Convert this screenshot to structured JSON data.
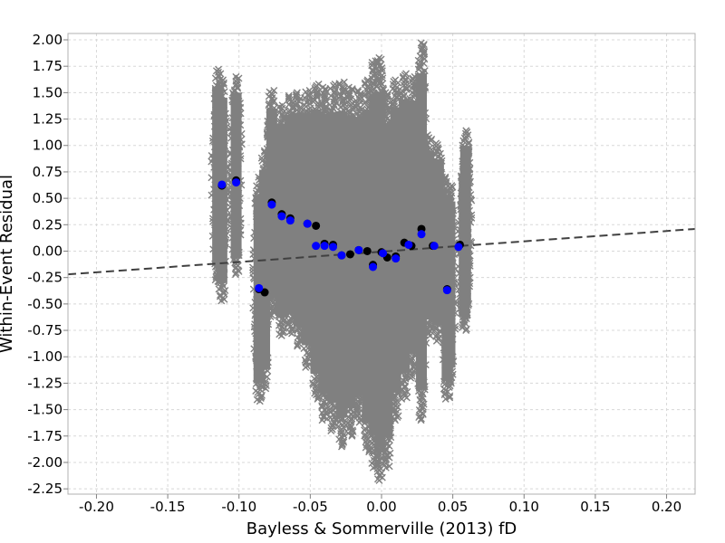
{
  "chart_data": {
    "type": "scatter",
    "xlabel": "Bayless & Sommerville (2013) fD",
    "ylabel": "Within-Event Residual",
    "xlim": [
      -0.22,
      0.22
    ],
    "ylim": [
      -2.3,
      2.06
    ],
    "x_ticks": [
      "-0.20",
      "-0.15",
      "-0.10",
      "-0.05",
      "0.00",
      "0.05",
      "0.10",
      "0.15",
      "0.20"
    ],
    "y_ticks": [
      "2.00",
      "1.75",
      "1.50",
      "1.25",
      "1.00",
      "0.75",
      "0.50",
      "0.25",
      "0.00",
      "-0.25",
      "-0.50",
      "-0.75",
      "-1.00",
      "-1.25",
      "-1.50",
      "-1.75",
      "-2.00",
      "-2.25"
    ],
    "grid": true,
    "colors": {
      "residuals": "#808080",
      "event_means": "#000000",
      "binned_means": "#0000ff",
      "trend": "#404040"
    },
    "residual_columns": [
      {
        "x": -0.115,
        "ymin": -0.3,
        "ymax": 1.72
      },
      {
        "x": -0.112,
        "ymin": -0.47,
        "ymax": 1.62
      },
      {
        "x": -0.102,
        "ymin": -0.22,
        "ymax": 1.65
      },
      {
        "x": -0.086,
        "ymin": -1.42,
        "ymax": 0.7
      },
      {
        "x": -0.082,
        "ymin": -1.3,
        "ymax": 0.95
      },
      {
        "x": -0.077,
        "ymin": -0.62,
        "ymax": 1.52
      },
      {
        "x": -0.07,
        "ymin": -0.8,
        "ymax": 1.38
      },
      {
        "x": -0.064,
        "ymin": -0.78,
        "ymax": 1.47
      },
      {
        "x": -0.058,
        "ymin": -0.9,
        "ymax": 1.5
      },
      {
        "x": -0.052,
        "ymin": -1.1,
        "ymax": 1.52
      },
      {
        "x": -0.046,
        "ymin": -1.4,
        "ymax": 1.58
      },
      {
        "x": -0.04,
        "ymin": -1.6,
        "ymax": 1.55
      },
      {
        "x": -0.034,
        "ymin": -1.7,
        "ymax": 1.58
      },
      {
        "x": -0.028,
        "ymin": -1.85,
        "ymax": 1.6
      },
      {
        "x": -0.022,
        "ymin": -1.75,
        "ymax": 1.55
      },
      {
        "x": -0.016,
        "ymin": -1.62,
        "ymax": 1.52
      },
      {
        "x": -0.01,
        "ymin": -1.9,
        "ymax": 1.62
      },
      {
        "x": -0.005,
        "ymin": -2.05,
        "ymax": 1.8
      },
      {
        "x": -0.001,
        "ymin": -2.17,
        "ymax": 1.83
      },
      {
        "x": 0.004,
        "ymin": -2.05,
        "ymax": 1.5
      },
      {
        "x": 0.01,
        "ymin": -1.6,
        "ymax": 1.62
      },
      {
        "x": 0.016,
        "ymin": -1.4,
        "ymax": 1.68
      },
      {
        "x": 0.022,
        "ymin": -1.2,
        "ymax": 1.65
      },
      {
        "x": 0.028,
        "ymin": -1.6,
        "ymax": 1.97
      },
      {
        "x": 0.033,
        "ymin": -0.8,
        "ymax": 1.1
      },
      {
        "x": 0.04,
        "ymin": -0.85,
        "ymax": 1.02
      },
      {
        "x": 0.046,
        "ymin": -1.4,
        "ymax": 0.7
      },
      {
        "x": 0.048,
        "ymin": -1.25,
        "ymax": 0.62
      },
      {
        "x": 0.058,
        "ymin": -0.75,
        "ymax": 0.85
      },
      {
        "x": 0.059,
        "ymin": -0.65,
        "ymax": 1.14
      }
    ],
    "series": [
      {
        "x": [
          -0.112,
          -0.102,
          -0.086,
          -0.082,
          -0.077,
          -0.07,
          -0.064,
          -0.052,
          -0.046,
          -0.04,
          -0.034,
          -0.028,
          -0.022,
          -0.016,
          -0.01,
          -0.006,
          0.0,
          0.004,
          0.01,
          0.016,
          0.021,
          0.028,
          0.036,
          0.046,
          0.055
        ],
        "y": [
          0.62,
          0.67,
          -0.36,
          -0.39,
          0.46,
          0.35,
          0.31,
          0.26,
          0.24,
          0.07,
          0.06,
          -0.04,
          -0.03,
          0.01,
          0.0,
          -0.13,
          -0.01,
          -0.06,
          -0.05,
          0.08,
          0.05,
          0.21,
          0.05,
          -0.36,
          0.06
        ]
      },
      {
        "x": [
          -0.112,
          -0.102,
          -0.086,
          -0.077,
          -0.07,
          -0.064,
          -0.052,
          -0.046,
          -0.04,
          -0.034,
          -0.028,
          -0.016,
          -0.006,
          0.001,
          0.01,
          0.019,
          0.028,
          0.037,
          0.046,
          0.054
        ],
        "y": [
          0.63,
          0.65,
          -0.35,
          0.44,
          0.33,
          0.29,
          0.26,
          0.05,
          0.05,
          0.04,
          -0.04,
          0.01,
          -0.15,
          -0.02,
          -0.07,
          0.06,
          0.16,
          0.05,
          -0.37,
          0.04
        ]
      }
    ],
    "trend_line": {
      "x": [
        -0.22,
        0.22
      ],
      "y": [
        -0.22,
        0.21
      ],
      "style": "dashed"
    }
  }
}
